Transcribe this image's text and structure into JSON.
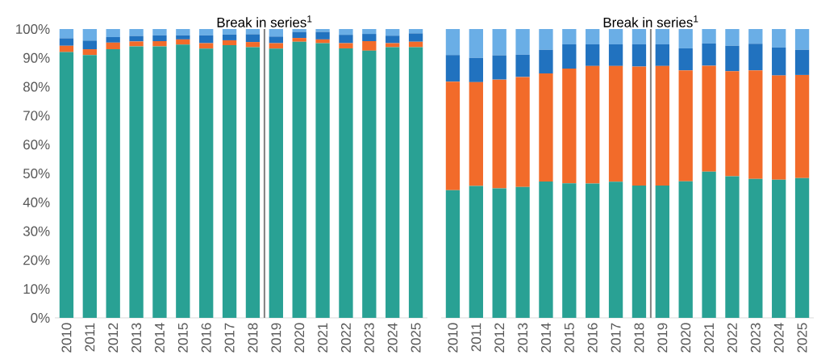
{
  "chart_data": [
    {
      "type": "bar",
      "stacked": true,
      "categories": [
        "2010",
        "2011",
        "2012",
        "2013",
        "2014",
        "2015",
        "2016",
        "2017",
        "2018",
        "2019",
        "2020",
        "2021",
        "2022",
        "2023",
        "2024",
        "2025"
      ],
      "series": [
        {
          "color": "#29a194",
          "values": [
            92,
            91,
            93,
            94,
            94,
            94.6,
            93.2,
            94.4,
            93.7,
            93.2,
            95.6,
            95.1,
            93.3,
            92.5,
            93.7,
            93.7
          ]
        },
        {
          "color": "#f26b2a",
          "values": [
            2.2,
            2,
            2.3,
            1.7,
            1.8,
            1.8,
            1.9,
            1.7,
            1.8,
            1.9,
            1.3,
            1.3,
            1.8,
            3.3,
            1.4,
            1.9
          ]
        },
        {
          "color": "#2172bf",
          "values": [
            2.6,
            3,
            1.9,
            1.9,
            2,
            1.4,
            2.7,
            2,
            2.7,
            2.3,
            2.1,
            2.6,
            2.9,
            2.5,
            2.6,
            2.9
          ]
        },
        {
          "color": "#6aaee6",
          "values": [
            3.2,
            4,
            2.8,
            2.4,
            2.2,
            2.2,
            2.2,
            1.9,
            1.8,
            2.6,
            1,
            1,
            2,
            1.7,
            2.3,
            1.5
          ]
        }
      ],
      "ylim": [
        0,
        100
      ],
      "yticks": [
        {
          "value": 0,
          "label": "0%"
        },
        {
          "value": 10,
          "label": "10%"
        },
        {
          "value": 20,
          "label": "20%"
        },
        {
          "value": 30,
          "label": "30%"
        },
        {
          "value": 40,
          "label": "40%"
        },
        {
          "value": 50,
          "label": "50%"
        },
        {
          "value": 60,
          "label": "60%"
        },
        {
          "value": 70,
          "label": "70%"
        },
        {
          "value": 80,
          "label": "80%"
        },
        {
          "value": 90,
          "label": "90%"
        },
        {
          "value": 100,
          "label": "100%"
        }
      ],
      "annotations": [
        "Break in series$^{1}$"
      ]
    },
    {
      "type": "bar",
      "stacked": true,
      "tick_labels": "x",
      "categories": [
        "2010",
        "2011",
        "2012",
        "2013",
        "2014",
        "2015",
        "2016",
        "2017",
        "2018",
        "2019",
        "2020",
        "2021",
        "2022",
        "2023",
        "2024",
        "2025"
      ],
      "series": [
        {
          "color": "#29a194",
          "values": [
            44.2,
            45.7,
            44.8,
            45.3,
            47.2,
            46.6,
            46.5,
            47.1,
            45.8,
            45.8,
            47.3,
            50.6,
            49,
            48.1,
            47.8,
            48.4
          ]
        },
        {
          "color": "#f26b2a",
          "values": [
            37.6,
            35.9,
            37.7,
            38.1,
            37.4,
            39.7,
            40.7,
            40.1,
            41.2,
            41.4,
            38.4,
            36.7,
            36.4,
            37.6,
            36.1,
            35.7
          ]
        },
        {
          "color": "#2172bf",
          "values": [
            9.2,
            8.4,
            8.4,
            7.7,
            8.2,
            8.4,
            7.5,
            7.5,
            7.7,
            7.5,
            7.6,
            7.7,
            8.8,
            9.2,
            9.7,
            8.7
          ]
        },
        {
          "color": "#6aaee6",
          "values": [
            9,
            10,
            9.1,
            8.9,
            7.2,
            5.3,
            5.3,
            5.3,
            5.3,
            5.3,
            6.7,
            5,
            5.8,
            5.1,
            6.4,
            7.2
          ]
        }
      ],
      "ylim": [
        0,
        100
      ],
      "annotations": [
        "Break in series$^{1}$"
      ]
    }
  ]
}
